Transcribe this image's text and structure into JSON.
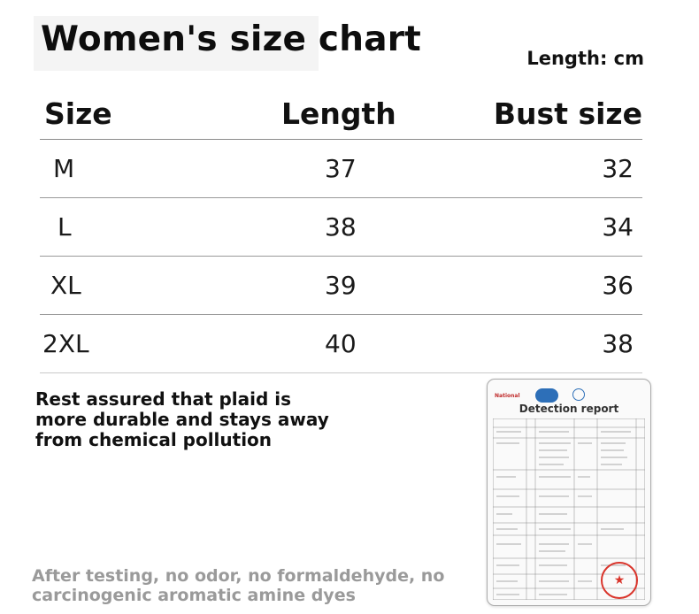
{
  "header": {
    "title": "Women's size chart",
    "unit_note": "Length: cm"
  },
  "table": {
    "columns": [
      "Size",
      "Length",
      "Bust size"
    ],
    "rows": [
      {
        "size": "M",
        "length": "37",
        "bust": "32"
      },
      {
        "size": "L",
        "length": "38",
        "bust": "34"
      },
      {
        "size": "XL",
        "length": "39",
        "bust": "36"
      },
      {
        "size": "2XL",
        "length": "40",
        "bust": "38"
      }
    ]
  },
  "notes": {
    "assurance": "Rest assured that plaid is more durable and stays away from chemical pollution",
    "footer": "After testing, no odor, no formaldehyde, no carcinogenic aromatic amine dyes"
  },
  "report": {
    "title": "Detection report",
    "logo_text": "National",
    "stamp_color": "#d9342b"
  },
  "colors": {
    "text": "#111111",
    "footer_text": "#9a9a9a",
    "divider": "#8a8a8a"
  }
}
